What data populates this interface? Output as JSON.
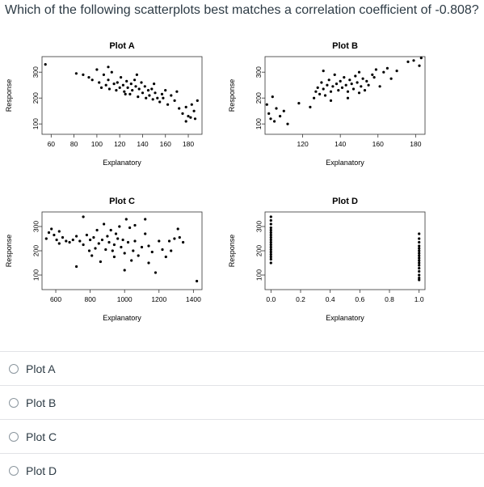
{
  "question": {
    "text": "Which of the following scatterplots best matches a correlation coefficient of -0.808?"
  },
  "answers": [
    {
      "label": "Plot A"
    },
    {
      "label": "Plot B"
    },
    {
      "label": "Plot C"
    },
    {
      "label": "Plot D"
    }
  ],
  "chart_data": [
    {
      "type": "scatter",
      "title": "Plot A",
      "xlabel": "Explanatory",
      "ylabel": "Response",
      "xlim": [
        52,
        192
      ],
      "ylim": [
        60,
        360
      ],
      "xticks": [
        60,
        80,
        100,
        120,
        140,
        160,
        180
      ],
      "yticks": [
        100,
        200,
        300
      ],
      "points": [
        [
          55,
          330
        ],
        [
          82,
          295
        ],
        [
          88,
          290
        ],
        [
          93,
          280
        ],
        [
          96,
          270
        ],
        [
          100,
          310
        ],
        [
          102,
          260
        ],
        [
          104,
          240
        ],
        [
          106,
          290
        ],
        [
          108,
          250
        ],
        [
          110,
          270
        ],
        [
          111,
          235
        ],
        [
          113,
          300
        ],
        [
          115,
          255
        ],
        [
          117,
          230
        ],
        [
          118,
          260
        ],
        [
          120,
          240
        ],
        [
          121,
          280
        ],
        [
          123,
          250
        ],
        [
          124,
          225
        ],
        [
          126,
          265
        ],
        [
          127,
          240
        ],
        [
          129,
          215
        ],
        [
          130,
          255
        ],
        [
          131,
          230
        ],
        [
          133,
          270
        ],
        [
          134,
          245
        ],
        [
          136,
          205
        ],
        [
          137,
          235
        ],
        [
          139,
          260
        ],
        [
          140,
          220
        ],
        [
          142,
          245
        ],
        [
          143,
          200
        ],
        [
          145,
          230
        ],
        [
          146,
          210
        ],
        [
          148,
          235
        ],
        [
          149,
          195
        ],
        [
          151,
          220
        ],
        [
          153,
          200
        ],
        [
          155,
          185
        ],
        [
          157,
          215
        ],
        [
          160,
          230
        ],
        [
          162,
          175
        ],
        [
          165,
          210
        ],
        [
          168,
          190
        ],
        [
          172,
          160
        ],
        [
          175,
          140
        ],
        [
          178,
          165
        ],
        [
          180,
          130
        ],
        [
          183,
          175
        ],
        [
          185,
          150
        ],
        [
          188,
          190
        ],
        [
          110,
          320
        ],
        [
          125,
          215
        ],
        [
          135,
          290
        ],
        [
          150,
          255
        ],
        [
          158,
          200
        ],
        [
          170,
          225
        ],
        [
          178,
          110
        ],
        [
          182,
          125
        ],
        [
          186,
          120
        ]
      ]
    },
    {
      "type": "scatter",
      "title": "Plot B",
      "xlabel": "Explanatory",
      "ylabel": "Response",
      "xlim": [
        100,
        185
      ],
      "ylim": [
        60,
        360
      ],
      "xticks": [
        120,
        140,
        160,
        180
      ],
      "yticks": [
        100,
        200,
        300
      ],
      "points": [
        [
          101,
          175
        ],
        [
          102,
          140
        ],
        [
          103,
          120
        ],
        [
          104,
          205
        ],
        [
          105,
          110
        ],
        [
          106,
          160
        ],
        [
          108,
          130
        ],
        [
          110,
          150
        ],
        [
          112,
          100
        ],
        [
          118,
          180
        ],
        [
          124,
          165
        ],
        [
          126,
          200
        ],
        [
          127,
          225
        ],
        [
          128,
          240
        ],
        [
          129,
          215
        ],
        [
          130,
          260
        ],
        [
          131,
          235
        ],
        [
          132,
          210
        ],
        [
          133,
          250
        ],
        [
          134,
          270
        ],
        [
          135,
          225
        ],
        [
          136,
          245
        ],
        [
          137,
          290
        ],
        [
          138,
          255
        ],
        [
          139,
          230
        ],
        [
          140,
          265
        ],
        [
          141,
          240
        ],
        [
          142,
          280
        ],
        [
          143,
          250
        ],
        [
          144,
          225
        ],
        [
          145,
          270
        ],
        [
          146,
          255
        ],
        [
          147,
          235
        ],
        [
          148,
          285
        ],
        [
          149,
          260
        ],
        [
          150,
          300
        ],
        [
          151,
          245
        ],
        [
          152,
          275
        ],
        [
          153,
          230
        ],
        [
          154,
          265
        ],
        [
          155,
          250
        ],
        [
          157,
          290
        ],
        [
          159,
          310
        ],
        [
          161,
          245
        ],
        [
          163,
          300
        ],
        [
          165,
          315
        ],
        [
          167,
          275
        ],
        [
          170,
          305
        ],
        [
          176,
          340
        ],
        [
          179,
          345
        ],
        [
          182,
          325
        ],
        [
          183,
          355
        ],
        [
          131,
          305
        ],
        [
          135,
          190
        ],
        [
          150,
          220
        ],
        [
          158,
          280
        ],
        [
          144,
          200
        ]
      ]
    },
    {
      "type": "scatter",
      "title": "Plot C",
      "xlabel": "Explanatory",
      "ylabel": "Response",
      "xlim": [
        520,
        1450
      ],
      "ylim": [
        40,
        360
      ],
      "xticks": [
        600,
        800,
        1000,
        1200,
        1400
      ],
      "yticks": [
        100,
        200,
        300
      ],
      "points": [
        [
          545,
          250
        ],
        [
          560,
          275
        ],
        [
          575,
          290
        ],
        [
          590,
          265
        ],
        [
          605,
          245
        ],
        [
          620,
          230
        ],
        [
          640,
          255
        ],
        [
          660,
          240
        ],
        [
          680,
          235
        ],
        [
          700,
          245
        ],
        [
          720,
          260
        ],
        [
          740,
          240
        ],
        [
          760,
          225
        ],
        [
          780,
          265
        ],
        [
          795,
          200
        ],
        [
          800,
          245
        ],
        [
          810,
          180
        ],
        [
          820,
          255
        ],
        [
          830,
          210
        ],
        [
          840,
          285
        ],
        [
          850,
          230
        ],
        [
          860,
          155
        ],
        [
          870,
          245
        ],
        [
          880,
          310
        ],
        [
          890,
          205
        ],
        [
          900,
          260
        ],
        [
          910,
          235
        ],
        [
          920,
          285
        ],
        [
          930,
          200
        ],
        [
          940,
          225
        ],
        [
          950,
          270
        ],
        [
          960,
          250
        ],
        [
          970,
          300
        ],
        [
          980,
          215
        ],
        [
          990,
          245
        ],
        [
          1000,
          190
        ],
        [
          1010,
          330
        ],
        [
          1020,
          235
        ],
        [
          1030,
          295
        ],
        [
          1040,
          160
        ],
        [
          1050,
          200
        ],
        [
          1060,
          240
        ],
        [
          1080,
          180
        ],
        [
          1100,
          215
        ],
        [
          1120,
          270
        ],
        [
          1140,
          220
        ],
        [
          1160,
          195
        ],
        [
          1180,
          110
        ],
        [
          1200,
          240
        ],
        [
          1220,
          205
        ],
        [
          1240,
          175
        ],
        [
          1260,
          240
        ],
        [
          1270,
          200
        ],
        [
          1290,
          250
        ],
        [
          1310,
          290
        ],
        [
          1320,
          255
        ],
        [
          1340,
          235
        ],
        [
          1420,
          75
        ],
        [
          720,
          135
        ],
        [
          760,
          340
        ],
        [
          1060,
          305
        ],
        [
          1000,
          120
        ],
        [
          1140,
          150
        ],
        [
          940,
          175
        ],
        [
          1120,
          330
        ],
        [
          620,
          280
        ]
      ]
    },
    {
      "type": "scatter",
      "title": "Plot D",
      "xlabel": "Explanatory",
      "ylabel": "Response",
      "xlim": [
        -0.04,
        1.04
      ],
      "ylim": [
        40,
        360
      ],
      "xticks": [
        0.0,
        0.2,
        0.4,
        0.6,
        0.8,
        1.0
      ],
      "yticks": [
        100,
        200,
        300
      ],
      "points": [
        [
          0,
          340
        ],
        [
          0,
          325
        ],
        [
          0,
          310
        ],
        [
          0,
          295
        ],
        [
          0,
          285
        ],
        [
          0,
          275
        ],
        [
          0,
          265
        ],
        [
          0,
          255
        ],
        [
          0,
          245
        ],
        [
          0,
          235
        ],
        [
          0,
          225
        ],
        [
          0,
          215
        ],
        [
          0,
          205
        ],
        [
          0,
          195
        ],
        [
          0,
          185
        ],
        [
          0,
          175
        ],
        [
          0,
          165
        ],
        [
          0,
          150
        ],
        [
          1,
          270
        ],
        [
          1,
          250
        ],
        [
          1,
          235
        ],
        [
          1,
          220
        ],
        [
          1,
          210
        ],
        [
          1,
          200
        ],
        [
          1,
          190
        ],
        [
          1,
          180
        ],
        [
          1,
          170
        ],
        [
          1,
          160
        ],
        [
          1,
          150
        ],
        [
          1,
          140
        ],
        [
          1,
          128
        ],
        [
          1,
          115
        ],
        [
          1,
          100
        ],
        [
          1,
          88
        ],
        [
          1,
          80
        ]
      ]
    }
  ]
}
